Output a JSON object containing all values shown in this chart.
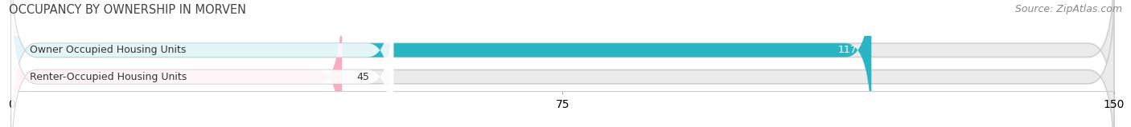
{
  "title": "OCCUPANCY BY OWNERSHIP IN MORVEN",
  "source": "Source: ZipAtlas.com",
  "categories": [
    "Owner Occupied Housing Units",
    "Renter-Occupied Housing Units"
  ],
  "values": [
    117,
    45
  ],
  "bar_colors": [
    "#2ab5c4",
    "#f5afc0"
  ],
  "bar_bg_color": "#ebebeb",
  "bar_border_color": "#d0d0d0",
  "xlim": [
    0,
    150
  ],
  "xticks": [
    0,
    75,
    150
  ],
  "title_fontsize": 10.5,
  "source_fontsize": 9,
  "label_fontsize": 9,
  "value_fontsize": 9,
  "background_color": "#ffffff",
  "bar_height": 0.52,
  "figsize": [
    14.06,
    1.59
  ],
  "dpi": 100
}
